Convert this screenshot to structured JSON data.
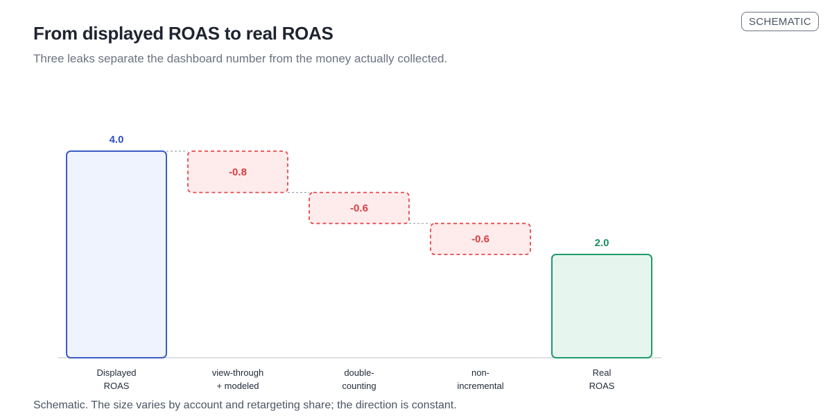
{
  "header": {
    "title": "From displayed ROAS to real ROAS",
    "subtitle": "Three leaks separate the dashboard number from the money actually collected.",
    "badge": "SCHEMATIC"
  },
  "footnote": "Schematic. The size varies by account and retargeting share; the direction is constant.",
  "colors": {
    "start_stroke": "#3a5bc7",
    "start_fill": "#eef3fd",
    "start_label": "#2f4fc4",
    "leak_stroke": "#e5484d",
    "leak_fill": "#fdeceb",
    "leak_label": "#d93d42",
    "end_stroke": "#1f9a6a",
    "end_fill": "#e6f6ee",
    "end_label": "#1a8f5f",
    "connector": "#9ca3af",
    "axis": "#d1d5db"
  },
  "chart_data": {
    "type": "waterfall",
    "ylim": [
      0,
      4.0
    ],
    "steps": [
      {
        "label_lines": [
          "Displayed",
          "ROAS"
        ],
        "kind": "total",
        "value": 4.0,
        "value_label": "4.0"
      },
      {
        "label_lines": [
          "view-through",
          "+ modeled"
        ],
        "kind": "delta",
        "value": -0.8,
        "value_label": "-0.8"
      },
      {
        "label_lines": [
          "double-",
          "counting"
        ],
        "kind": "delta",
        "value": -0.6,
        "value_label": "-0.6"
      },
      {
        "label_lines": [
          "non-",
          "incremental"
        ],
        "kind": "delta",
        "value": -0.6,
        "value_label": "-0.6"
      },
      {
        "label_lines": [
          "Real",
          "ROAS"
        ],
        "kind": "total",
        "value": 2.0,
        "value_label": "2.0"
      }
    ]
  }
}
